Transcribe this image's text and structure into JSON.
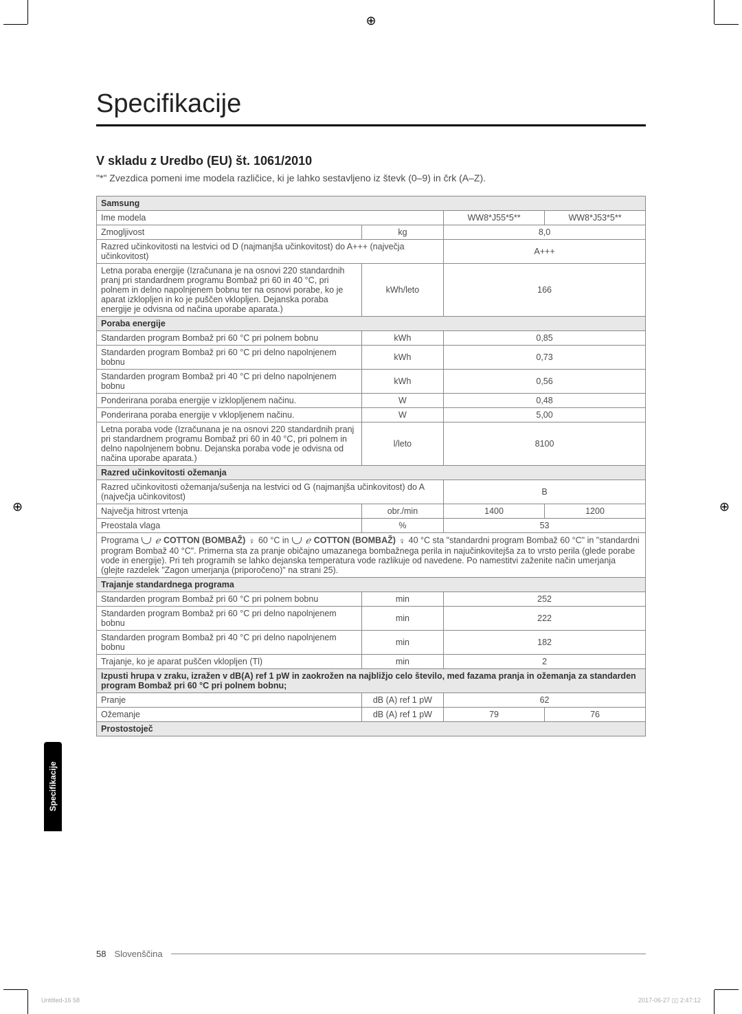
{
  "page": {
    "title": "Specifikacije",
    "section_heading": "V skladu z Uredbo (EU) št. 1061/2010",
    "asterisk_note": "\"*\" Zvezdica pomeni ime modela različice, ki je lahko sestavljeno iz števk (0–9) in črk (A–Z).",
    "sidebar_label": "Specifikacije",
    "page_number": "58",
    "language": "Slovenščina",
    "print_meta_left": "Untitled-16   58",
    "print_meta_right": "2017-06-27   ▯▯ 2:47:12"
  },
  "brand_row": "Samsung",
  "rows": {
    "model_name_label": "Ime modela",
    "model_a": "WW8*J55*5**",
    "model_b": "WW8*J53*5**",
    "capacity_label": "Zmogljivost",
    "capacity_unit": "kg",
    "capacity_value": "8,0",
    "energy_class_label": "Razred učinkovitosti na lestvici od D (najmanjša učinkovitost) do A+++ (največja učinkovitost)",
    "energy_class_value": "A+++",
    "annual_energy_label": "Letna poraba energije (Izračunana je na osnovi 220 standardnih pranj pri standardnem programu Bombaž pri 60 in 40 °C, pri polnem in delno napolnjenem bobnu ter na osnovi porabe, ko je aparat izklopljen in ko je puščen vklopljen. Dejanska poraba energije je odvisna od načina uporabe aparata.)",
    "annual_energy_unit": "kWh/leto",
    "annual_energy_value": "166",
    "energy_header": "Poraba energije",
    "e_full60_label": "Standarden program Bombaž pri 60 °C pri polnem bobnu",
    "e_full60_unit": "kWh",
    "e_full60_value": "0,85",
    "e_part60_label": "Standarden program Bombaž pri 60 °C pri delno napolnjenem bobnu",
    "e_part60_unit": "kWh",
    "e_part60_value": "0,73",
    "e_part40_label": "Standarden program Bombaž pri 40 °C pri delno napolnjenem bobnu",
    "e_part40_unit": "kWh",
    "e_part40_value": "0,56",
    "e_off_label": "Ponderirana poraba energije v izklopljenem načinu.",
    "e_off_unit": "W",
    "e_off_value": "0,48",
    "e_on_label": "Ponderirana poraba energije v vklopljenem načinu.",
    "e_on_unit": "W",
    "e_on_value": "5,00",
    "annual_water_label": "Letna poraba vode (Izračunana je na osnovi 220 standardnih pranj pri standardnem programu Bombaž pri 60 in 40 °C, pri polnem in delno napolnjenem bobnu. Dejanska poraba vode je odvisna od načina uporabe aparata.)",
    "annual_water_unit": "l/leto",
    "annual_water_value": "8100",
    "spin_header": "Razred učinkovitosti ožemanja",
    "spin_class_label": "Razred učinkovitosti ožemanja/sušenja na lestvici od G (najmanjša učinkovitost) do A (največja učinkovitost)",
    "spin_class_value": "B",
    "spin_speed_label": "Največja hitrost vrtenja",
    "spin_speed_unit": "obr./min",
    "spin_speed_a": "1400",
    "spin_speed_b": "1200",
    "residual_label": "Preostala vlaga",
    "residual_unit": "%",
    "residual_value": "53",
    "programs_note_pre": "Programa ",
    "cotton_label_1": "COTTON (BOMBAŽ)",
    "programs_note_mid1": " 60 °C in ",
    "cotton_label_2": "COTTON (BOMBAŽ)",
    "programs_note_rest": " 40 °C sta \"standardni program Bombaž 60 °C\" in \"standardni program Bombaž 40 °C\". Primerna sta za pranje običajno umazanega bombažnega perila in najučinkovitejša za to vrsto perila (glede porabe vode in energije). Pri teh programih se lahko dejanska temperatura vode razlikuje od navedene. Po namestitvi zaženite način umerjanja (glejte razdelek \"Zagon umerjanja (priporočeno)\" na strani 25).",
    "duration_header": "Trajanje standardnega programa",
    "d_full60_label": "Standarden program Bombaž pri 60 °C pri polnem bobnu",
    "d_full60_unit": "min",
    "d_full60_value": "252",
    "d_part60_label": "Standarden program Bombaž pri 60 °C pri delno napolnjenem bobnu",
    "d_part60_unit": "min",
    "d_part60_value": "222",
    "d_part40_label": "Standarden program Bombaž pri 40 °C pri delno napolnjenem bobnu",
    "d_part40_unit": "min",
    "d_part40_value": "182",
    "d_lefton_label": "Trajanje, ko je aparat puščen vklopljen (Tl)",
    "d_lefton_unit": "min",
    "d_lefton_value": "2",
    "noise_header": "Izpusti hrupa v zraku, izražen v dB(A) ref 1 pW in zaokrožen na najbližjo celo število, med fazama pranja in ožemanja za standarden program Bombaž pri 60 °C pri polnem bobnu;",
    "noise_wash_label": "Pranje",
    "noise_wash_unit": "dB (A) ref 1 pW",
    "noise_wash_value": "62",
    "noise_spin_label": "Ožemanje",
    "noise_spin_unit": "dB (A) ref 1 pW",
    "noise_spin_a": "79",
    "noise_spin_b": "76",
    "freestanding_label": "Prostostoječ"
  },
  "colors": {
    "text": "#4a4a4a",
    "header_bg": "#e8e8e8",
    "border": "#888888",
    "rule": "#000000"
  }
}
